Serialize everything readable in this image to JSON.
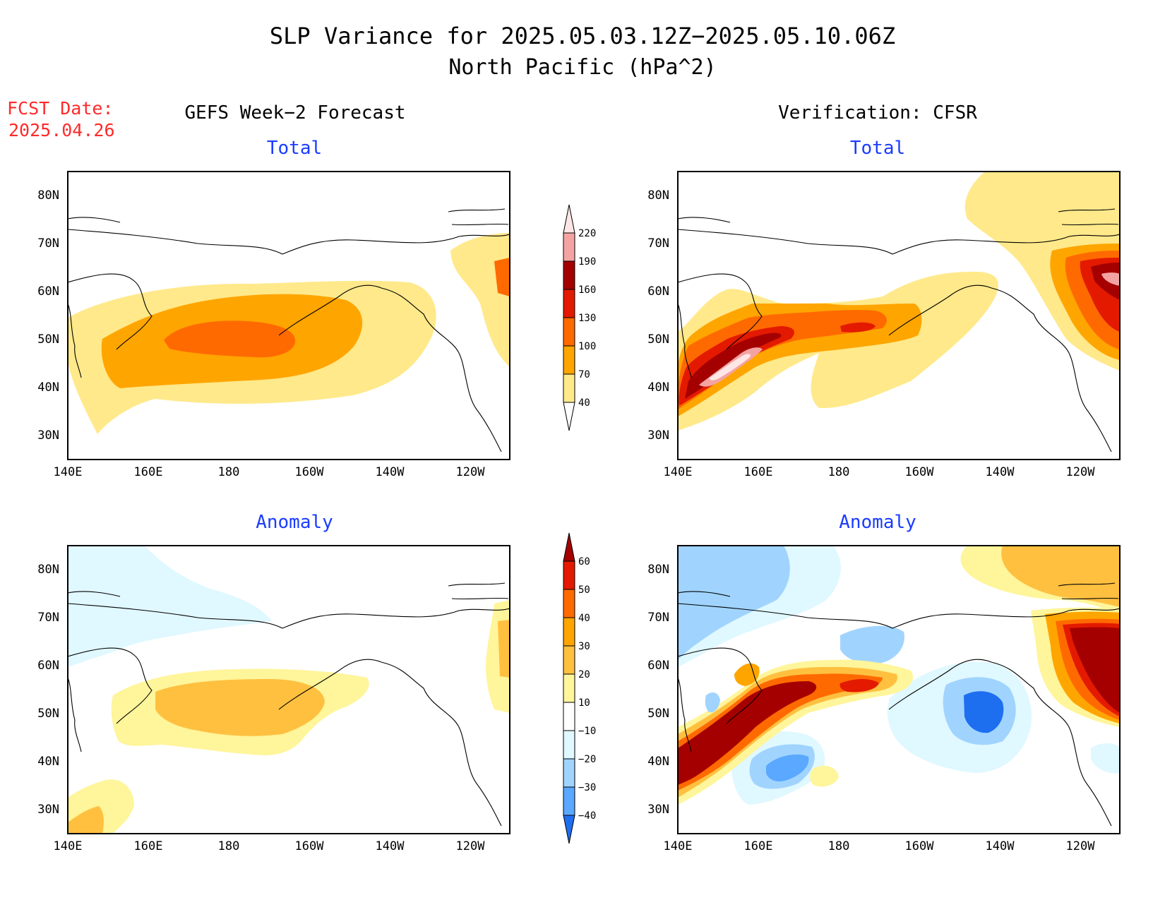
{
  "header": {
    "title_line1": "SLP Variance for 2025.05.03.12Z−2025.05.10.06Z",
    "title_line2": "North Pacific (hPa^2)",
    "fcst_date_label": "FCST Date:",
    "fcst_date_value": "2025.04.26",
    "left_column_title": "GEFS Week−2 Forecast",
    "right_column_title": "Verification: CFSR"
  },
  "colors": {
    "fcst_date": "#ff2a2a",
    "panel_title": "#1a3cff",
    "coast": "#000000"
  },
  "axes": {
    "x_ticks": [
      "140E",
      "160E",
      "180",
      "160W",
      "140W",
      "120W"
    ],
    "y_ticks": [
      "30N",
      "40N",
      "50N",
      "60N",
      "70N",
      "80N"
    ]
  },
  "panels": [
    {
      "id": "fcst-total",
      "title": "Total"
    },
    {
      "id": "verif-total",
      "title": "Total"
    },
    {
      "id": "fcst-anom",
      "title": "Anomaly"
    },
    {
      "id": "verif-anom",
      "title": "Anomaly"
    }
  ],
  "total_colorbar": {
    "levels": [
      "40",
      "70",
      "100",
      "130",
      "160",
      "190",
      "220"
    ],
    "colors": [
      "#ffe98a",
      "#ffa500",
      "#ff6a00",
      "#e31a00",
      "#a50000",
      "#f4a3a3",
      "#ffe6e6"
    ]
  },
  "anomaly_colorbar": {
    "levels": [
      "60",
      "50",
      "40",
      "30",
      "20",
      "10",
      "−10",
      "−20",
      "−30",
      "−40"
    ],
    "colors": [
      "#a50000",
      "#e31a00",
      "#ff6a00",
      "#ffa500",
      "#ffc040",
      "#fff59a",
      "#ffffff",
      "#e0f8ff",
      "#a0d4ff",
      "#5aa8ff",
      "#1e6ef0"
    ]
  }
}
